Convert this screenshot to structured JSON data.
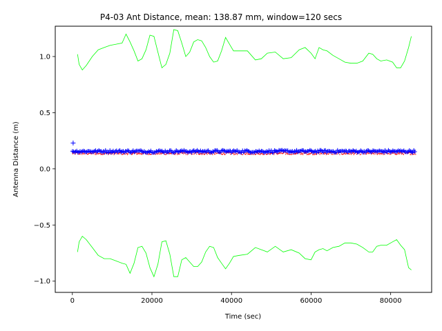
{
  "chart_data": {
    "type": "line",
    "title": "P4-03 Ant Distance, mean: 138.87 mm, window=120 secs",
    "xlabel": "Time (sec)",
    "ylabel": "Antenna Distance (m)",
    "xlim": [
      -4300,
      90300
    ],
    "ylim": [
      -1.1,
      1.27
    ],
    "x_ticks": [
      0,
      20000,
      40000,
      60000,
      80000
    ],
    "x_tick_labels": [
      "0",
      "20000",
      "40000",
      "60000",
      "80000"
    ],
    "y_ticks": [
      -1.0,
      -0.5,
      0.0,
      0.5,
      1.0
    ],
    "y_tick_labels": [
      "−1.0",
      "−0.5",
      "0.0",
      "0.5",
      "1.0"
    ],
    "grid": false,
    "legend": "none",
    "series": [
      {
        "style": "line",
        "color": "#00ff00",
        "x": [
          1300,
          1700,
          2500,
          3500,
          5000,
          6500,
          8000,
          9500,
          11000,
          12500,
          13500,
          14500,
          15500,
          16500,
          17500,
          18500,
          19500,
          20500,
          21500,
          22500,
          23500,
          24500,
          25500,
          26500,
          27500,
          28500,
          29500,
          30500,
          31500,
          32500,
          33500,
          34500,
          35500,
          36500,
          37500,
          38500,
          39500,
          40500,
          42000,
          44000,
          46000,
          47500,
          49000,
          51000,
          53000,
          55000,
          57000,
          58500,
          60000,
          61000,
          62000,
          63000,
          64000,
          65500,
          67000,
          68500,
          70000,
          71500,
          73000,
          74500,
          75500,
          76500,
          77500,
          79000,
          80500,
          81500,
          82500,
          83500,
          84500,
          85200
        ],
        "y": [
          1.02,
          0.93,
          0.88,
          0.92,
          1.0,
          1.06,
          1.08,
          1.1,
          1.11,
          1.12,
          1.2,
          1.13,
          1.05,
          0.96,
          0.98,
          1.06,
          1.19,
          1.18,
          1.04,
          0.9,
          0.93,
          1.03,
          1.24,
          1.23,
          1.12,
          1.0,
          1.04,
          1.13,
          1.15,
          1.14,
          1.08,
          1.0,
          0.95,
          0.96,
          1.05,
          1.17,
          1.11,
          1.05,
          1.05,
          1.05,
          0.97,
          0.98,
          1.03,
          1.04,
          0.98,
          0.99,
          1.06,
          1.08,
          1.03,
          0.98,
          1.08,
          1.06,
          1.05,
          1.01,
          0.98,
          0.95,
          0.94,
          0.94,
          0.96,
          1.03,
          1.02,
          0.98,
          0.96,
          0.97,
          0.95,
          0.9,
          0.9,
          0.96,
          1.08,
          1.18
        ]
      },
      {
        "style": "line",
        "color": "#00ff00",
        "x": [
          1300,
          1700,
          2500,
          3500,
          5000,
          6500,
          8000,
          9500,
          11000,
          12500,
          13500,
          14500,
          15500,
          16500,
          17500,
          18500,
          19500,
          20500,
          21500,
          22500,
          23500,
          24500,
          25500,
          26500,
          27500,
          28500,
          29500,
          30500,
          31500,
          32500,
          33500,
          34500,
          35500,
          36500,
          37500,
          38500,
          39500,
          40500,
          42000,
          44000,
          46000,
          47500,
          49000,
          51000,
          53000,
          55000,
          57000,
          58500,
          60000,
          61000,
          62000,
          63000,
          64000,
          65500,
          67000,
          68500,
          70000,
          71500,
          73000,
          74500,
          75500,
          76500,
          77500,
          79000,
          80500,
          81500,
          82500,
          83500,
          84500,
          85200
        ],
        "y": [
          -0.74,
          -0.65,
          -0.6,
          -0.63,
          -0.7,
          -0.77,
          -0.8,
          -0.8,
          -0.82,
          -0.84,
          -0.85,
          -0.93,
          -0.84,
          -0.7,
          -0.69,
          -0.75,
          -0.88,
          -0.96,
          -0.85,
          -0.65,
          -0.64,
          -0.76,
          -0.96,
          -0.96,
          -0.81,
          -0.79,
          -0.83,
          -0.87,
          -0.87,
          -0.83,
          -0.74,
          -0.69,
          -0.7,
          -0.79,
          -0.84,
          -0.89,
          -0.84,
          -0.78,
          -0.77,
          -0.76,
          -0.7,
          -0.72,
          -0.74,
          -0.69,
          -0.74,
          -0.72,
          -0.75,
          -0.8,
          -0.81,
          -0.74,
          -0.72,
          -0.71,
          -0.73,
          -0.7,
          -0.69,
          -0.66,
          -0.66,
          -0.67,
          -0.7,
          -0.74,
          -0.74,
          -0.69,
          -0.68,
          -0.68,
          -0.65,
          -0.63,
          -0.68,
          -0.72,
          -0.88,
          -0.9
        ]
      },
      {
        "style": "points",
        "color": "#ff0000",
        "marker": "dot",
        "x_start": 0,
        "x_end": 86300,
        "y_center": 0.138,
        "y_spread": 0.012
      },
      {
        "style": "points",
        "color": "#0000ff",
        "marker": "+",
        "x_start": 0,
        "x_end": 86300,
        "y_center": 0.156,
        "y_spread": 0.011,
        "extra_points": [
          {
            "x": 200,
            "y": 0.23
          }
        ]
      }
    ]
  }
}
